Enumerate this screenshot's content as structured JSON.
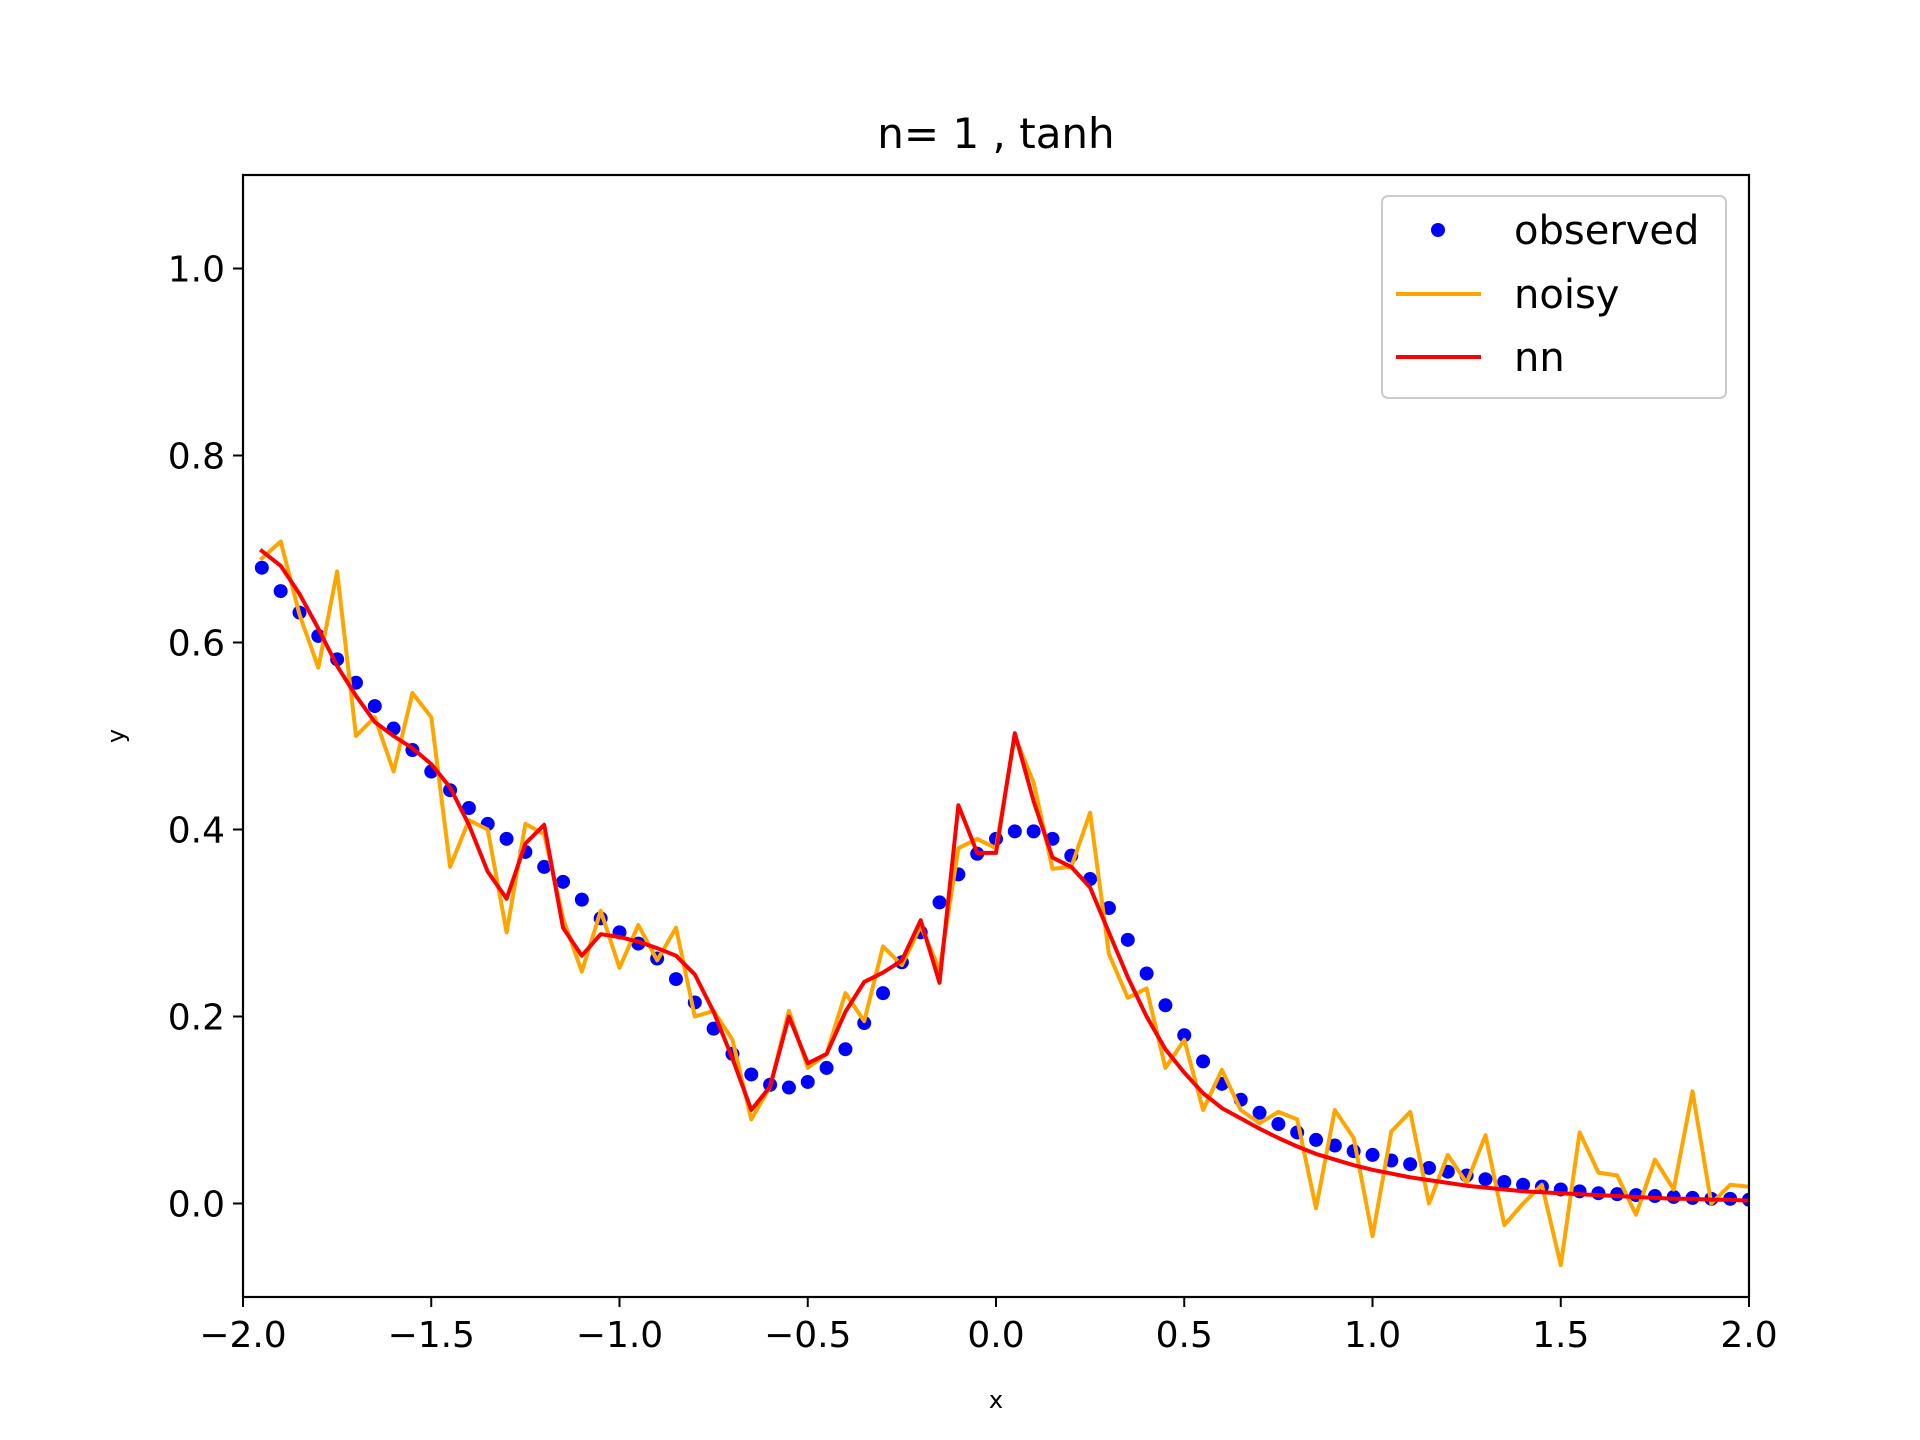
{
  "chart_data": {
    "type": "line",
    "title": "n= 1 ,  tanh",
    "xlabel": "x",
    "ylabel": "y",
    "xlim": [
      -2.0,
      2.0
    ],
    "ylim": [
      -0.1,
      1.1
    ],
    "xticks": [
      -2.0,
      -1.5,
      -1.0,
      -0.5,
      0.0,
      0.5,
      1.0,
      1.5,
      2.0
    ],
    "xtick_labels": [
      "−2.0",
      "−1.5",
      "−1.0",
      "−0.5",
      "0.0",
      "0.5",
      "1.0",
      "1.5",
      "2.0"
    ],
    "yticks": [
      0.0,
      0.2,
      0.4,
      0.6,
      0.8,
      1.0
    ],
    "ytick_labels": [
      "0.0",
      "0.2",
      "0.4",
      "0.6",
      "0.8",
      "1.0"
    ],
    "legend_position": "top-right",
    "x": [
      -1.95,
      -1.9,
      -1.85,
      -1.8,
      -1.75,
      -1.7,
      -1.65,
      -1.6,
      -1.55,
      -1.5,
      -1.45,
      -1.4,
      -1.35,
      -1.3,
      -1.25,
      -1.2,
      -1.15,
      -1.1,
      -1.05,
      -1.0,
      -0.95,
      -0.9,
      -0.85,
      -0.8,
      -0.75,
      -0.7,
      -0.65,
      -0.6,
      -0.55,
      -0.5,
      -0.45,
      -0.4,
      -0.35,
      -0.3,
      -0.25,
      -0.2,
      -0.15,
      -0.1,
      -0.05,
      0.0,
      0.05,
      0.1,
      0.15,
      0.2,
      0.25,
      0.3,
      0.35,
      0.4,
      0.45,
      0.5,
      0.55,
      0.6,
      0.65,
      0.7,
      0.75,
      0.8,
      0.85,
      0.9,
      0.95,
      1.0,
      1.05,
      1.1,
      1.15,
      1.2,
      1.25,
      1.3,
      1.35,
      1.4,
      1.45,
      1.5,
      1.55,
      1.6,
      1.65,
      1.7,
      1.75,
      1.8,
      1.85,
      1.9,
      1.95,
      2.0
    ],
    "series": [
      {
        "name": "observed",
        "style": "markers",
        "color": "#0000ff",
        "values": [
          0.68,
          0.655,
          0.632,
          0.607,
          0.582,
          0.557,
          0.532,
          0.508,
          0.485,
          0.462,
          0.442,
          0.423,
          0.406,
          0.39,
          0.376,
          0.36,
          0.344,
          0.325,
          0.305,
          0.29,
          0.278,
          0.262,
          0.24,
          0.215,
          0.187,
          0.16,
          0.138,
          0.127,
          0.124,
          0.13,
          0.145,
          0.165,
          0.193,
          0.225,
          0.258,
          0.29,
          0.322,
          0.352,
          0.374,
          0.39,
          0.398,
          0.398,
          0.39,
          0.372,
          0.347,
          0.316,
          0.282,
          0.246,
          0.212,
          0.18,
          0.152,
          0.128,
          0.111,
          0.097,
          0.085,
          0.076,
          0.068,
          0.062,
          0.056,
          0.052,
          0.046,
          0.042,
          0.038,
          0.034,
          0.03,
          0.026,
          0.023,
          0.02,
          0.018,
          0.015,
          0.013,
          0.011,
          0.01,
          0.009,
          0.008,
          0.007,
          0.006,
          0.005,
          0.005,
          0.004
        ]
      },
      {
        "name": "noisy",
        "style": "line",
        "color": "#ffa500",
        "values": [
          0.69,
          0.708,
          0.63,
          0.573,
          0.676,
          0.5,
          0.52,
          0.462,
          0.546,
          0.52,
          0.36,
          0.41,
          0.4,
          0.29,
          0.406,
          0.395,
          0.305,
          0.248,
          0.313,
          0.252,
          0.298,
          0.26,
          0.295,
          0.2,
          0.206,
          0.175,
          0.09,
          0.125,
          0.206,
          0.145,
          0.16,
          0.225,
          0.195,
          0.275,
          0.255,
          0.297,
          0.25,
          0.38,
          0.39,
          0.38,
          0.5,
          0.45,
          0.358,
          0.36,
          0.418,
          0.267,
          0.22,
          0.23,
          0.145,
          0.175,
          0.1,
          0.143,
          0.1,
          0.086,
          0.098,
          0.09,
          -0.005,
          0.1,
          0.07,
          -0.035,
          0.077,
          0.098,
          0.0,
          0.052,
          0.022,
          0.073,
          -0.023,
          0.0,
          0.02,
          -0.066,
          0.076,
          0.033,
          0.03,
          -0.012,
          0.047,
          0.015,
          0.12,
          0.0,
          0.02,
          0.018
        ]
      },
      {
        "name": "nn",
        "style": "line",
        "color": "#ff0000",
        "values": [
          0.698,
          0.682,
          0.652,
          0.615,
          0.575,
          0.543,
          0.515,
          0.5,
          0.487,
          0.47,
          0.445,
          0.405,
          0.355,
          0.326,
          0.385,
          0.405,
          0.295,
          0.265,
          0.288,
          0.285,
          0.28,
          0.273,
          0.265,
          0.245,
          0.205,
          0.155,
          0.1,
          0.125,
          0.2,
          0.15,
          0.16,
          0.205,
          0.237,
          0.247,
          0.26,
          0.303,
          0.236,
          0.426,
          0.375,
          0.375,
          0.503,
          0.43,
          0.37,
          0.36,
          0.338,
          0.29,
          0.242,
          0.2,
          0.165,
          0.14,
          0.118,
          0.102,
          0.091,
          0.08,
          0.07,
          0.061,
          0.053,
          0.047,
          0.041,
          0.036,
          0.032,
          0.028,
          0.025,
          0.022,
          0.019,
          0.017,
          0.015,
          0.013,
          0.012,
          0.011,
          0.01,
          0.009,
          0.008,
          0.007,
          0.006,
          0.005,
          0.005,
          0.004,
          0.004,
          0.003
        ]
      }
    ]
  }
}
